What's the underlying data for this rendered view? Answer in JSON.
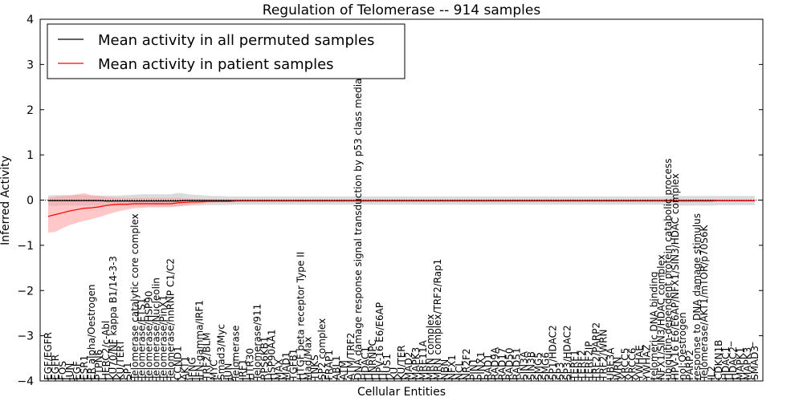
{
  "chart_data": {
    "type": "line",
    "title": "Regulation of Telomerase -- 914 samples",
    "xlabel": "Cellular Entities",
    "ylabel": "Inferred Activity",
    "ylim": [
      -4,
      4
    ],
    "yticks": [
      4,
      3,
      2,
      1,
      0,
      -1,
      -2,
      -3,
      -4
    ],
    "ytick_labels": [
      "4",
      "3",
      "2",
      "1",
      "0",
      "−1",
      "−2",
      "−3",
      "−4"
    ],
    "grid": false,
    "legend_position": "top-left",
    "colors": {
      "permuted": "#000000",
      "patient": "#ff0000",
      "permuted_band": "#b0b0b0",
      "patient_band": "#ff9999",
      "zero_line": "#000000"
    },
    "categories": [
      "EGF/EGFR",
      "EGFR",
      "FOS",
      "JUN",
      "EGF",
      "ESR1",
      "ER alpha/Oestrogen",
      "PTPN6",
      "HERC2/c-Abl",
      "KU70/NF kappa B1/14-3-3",
      "KU/TERT",
      "SP1",
      "Telomerase catalytic core complex",
      "Telomerase/ETS1",
      "Telomerase/HSP90",
      "Telomerase/Nucleolin",
      "Telomerase/PinX1",
      "Telomerase/hnRNP C1/C2",
      "CCND1",
      "AKT1",
      "IFNG",
      "IFN-gamma/IRF1",
      "TRF2/BLM",
      "MYC",
      "Smad3/Myc",
      "JUN_",
      "Telomerase",
      "IRF1",
      "HTR30",
      "Telomerase/911",
      "RPS6KB1",
      "HSP90AA1",
      "MAX",
      "MAD1",
      "TGFB1",
      "HTGF beta receptor Type II",
      "Mad/Max",
      "TNKS",
      "SP2 complex",
      "FRAP1",
      "ABL1",
      "ATM",
      "ATM/TRF2",
      "DNA damage response signal transduction by p53 class mediator",
      "HDAC1",
      "HNRNPC",
      "HPV-16 E6/E6AP",
      "HUS1",
      "KU",
      "KU/TER",
      "MAD2",
      "MAPK3",
      "MRE11A",
      "MRN complex",
      "MRN complex/TRF2/Rap1",
      "NBN",
      "NFX1",
      "NCL",
      "NR2F2",
      "PIN1",
      "PINX1",
      "RAD1",
      "RAD9A",
      "RAD17",
      "RAD50",
      "RAD51",
      "SIN3A",
      "SIN3B",
      "SMG5",
      "SMG6",
      "SP1/HDAC2",
      "SP3",
      "SP3/HDAC2",
      "TERF1",
      "TERF2",
      "TERF2IP",
      "TRF2/PARP2",
      "TRF2/WRN",
      "UBE3A",
      "WRN",
      "XRCC5",
      "XRCC6",
      "YWHAE",
      "YWHAZ",
      "telomeric DNA binding",
      "NFX1/SIN3/HDAC complex",
      "ubiquitin-dependent protein catabolic process",
      "HPV-16 E6/E6AP/NFX1/SIN3/HDAC complex",
      "nol:Oestrogen",
      "PARP2",
      "response to DNA damage stimulus",
      "Telomerase/AKT1/mTOR/p70S6K",
      "IL2",
      "CDKN1B",
      "HDAC1_",
      "HDAC2",
      "MAPK1",
      "MAPK3_",
      "SMAD3"
    ],
    "series": [
      {
        "name": "Mean activity in all permuted samples",
        "color": "#000000",
        "values": [
          -0.01,
          -0.01,
          -0.01,
          -0.01,
          -0.01,
          -0.01,
          -0.01,
          -0.01,
          -0.02,
          -0.02,
          -0.02,
          -0.02,
          -0.02,
          -0.02,
          -0.02,
          -0.02,
          -0.02,
          -0.02,
          -0.02,
          -0.01,
          -0.01,
          -0.01,
          -0.01,
          -0.01,
          -0.01,
          -0.01,
          -0.01,
          -0.01,
          -0.01,
          -0.01,
          -0.01,
          -0.01,
          -0.01,
          -0.01,
          -0.01,
          -0.01,
          -0.01,
          -0.01,
          -0.01,
          -0.01,
          -0.01,
          -0.01,
          -0.01,
          -0.01,
          -0.01,
          -0.01,
          -0.01,
          -0.01,
          -0.01,
          -0.01,
          -0.01,
          -0.01,
          -0.01,
          -0.01,
          -0.01,
          -0.01,
          -0.01,
          -0.01,
          -0.01,
          -0.01,
          -0.01,
          -0.01,
          -0.01,
          -0.01,
          -0.01,
          -0.01,
          -0.01,
          -0.01,
          -0.01,
          -0.01,
          -0.01,
          -0.01,
          -0.01,
          -0.01,
          -0.01,
          -0.01,
          -0.01,
          -0.01,
          -0.01,
          -0.01,
          -0.01,
          -0.01,
          -0.01,
          -0.01,
          -0.01,
          -0.01,
          -0.01,
          -0.01,
          -0.01,
          -0.01,
          -0.01,
          -0.01,
          -0.01,
          -0.01,
          -0.01,
          -0.01,
          -0.01,
          -0.01,
          -0.01
        ],
        "band_lower": [
          -0.13,
          -0.13,
          -0.12,
          -0.12,
          -0.12,
          -0.12,
          -0.12,
          -0.12,
          -0.13,
          -0.13,
          -0.13,
          -0.13,
          -0.14,
          -0.14,
          -0.14,
          -0.14,
          -0.14,
          -0.14,
          -0.14,
          -0.13,
          -0.12,
          -0.12,
          -0.11,
          -0.11,
          -0.11,
          -0.11,
          -0.1,
          -0.1,
          -0.1,
          -0.1,
          -0.1,
          -0.1,
          -0.1,
          -0.1,
          -0.1,
          -0.1,
          -0.1,
          -0.1,
          -0.1,
          -0.1,
          -0.1,
          -0.1,
          -0.1,
          -0.1,
          -0.1,
          -0.1,
          -0.1,
          -0.1,
          -0.1,
          -0.1,
          -0.1,
          -0.1,
          -0.1,
          -0.1,
          -0.1,
          -0.1,
          -0.1,
          -0.1,
          -0.1,
          -0.1,
          -0.1,
          -0.1,
          -0.1,
          -0.1,
          -0.1,
          -0.1,
          -0.1,
          -0.1,
          -0.1,
          -0.1,
          -0.1,
          -0.1,
          -0.1,
          -0.1,
          -0.1,
          -0.1,
          -0.1,
          -0.1,
          -0.1,
          -0.1,
          -0.1,
          -0.1,
          -0.1,
          -0.1,
          -0.1,
          -0.1,
          -0.12,
          -0.12,
          -0.12,
          -0.12,
          -0.12,
          -0.12,
          -0.12,
          -0.11,
          -0.11,
          -0.11,
          -0.11,
          -0.11,
          -0.11
        ],
        "band_upper": [
          0.1,
          0.11,
          0.11,
          0.11,
          0.11,
          0.11,
          0.1,
          0.1,
          0.1,
          0.1,
          0.1,
          0.11,
          0.12,
          0.13,
          0.13,
          0.13,
          0.13,
          0.13,
          0.16,
          0.14,
          0.12,
          0.11,
          0.1,
          0.09,
          0.09,
          0.08,
          0.08,
          0.08,
          0.08,
          0.08,
          0.08,
          0.08,
          0.08,
          0.08,
          0.08,
          0.08,
          0.08,
          0.08,
          0.08,
          0.08,
          0.08,
          0.08,
          0.08,
          0.08,
          0.08,
          0.08,
          0.08,
          0.08,
          0.08,
          0.08,
          0.08,
          0.08,
          0.08,
          0.08,
          0.08,
          0.08,
          0.08,
          0.08,
          0.08,
          0.08,
          0.08,
          0.08,
          0.08,
          0.08,
          0.08,
          0.08,
          0.08,
          0.08,
          0.08,
          0.08,
          0.08,
          0.08,
          0.08,
          0.08,
          0.08,
          0.08,
          0.08,
          0.08,
          0.08,
          0.08,
          0.08,
          0.08,
          0.08,
          0.08,
          0.08,
          0.08,
          0.09,
          0.09,
          0.09,
          0.09,
          0.09,
          0.09,
          0.09,
          0.09,
          0.09,
          0.09,
          0.09,
          0.09,
          0.09
        ]
      },
      {
        "name": "Mean activity in patient samples",
        "color": "#ff0000",
        "values": [
          -0.36,
          -0.32,
          -0.28,
          -0.24,
          -0.21,
          -0.18,
          -0.17,
          -0.15,
          -0.12,
          -0.1,
          -0.09,
          -0.09,
          -0.08,
          -0.08,
          -0.08,
          -0.08,
          -0.08,
          -0.08,
          -0.06,
          -0.05,
          -0.04,
          -0.04,
          -0.03,
          -0.03,
          -0.03,
          -0.03,
          -0.02,
          -0.02,
          -0.02,
          -0.02,
          -0.02,
          -0.02,
          -0.02,
          -0.02,
          -0.02,
          -0.02,
          -0.02,
          -0.02,
          -0.02,
          -0.02,
          -0.02,
          -0.02,
          -0.02,
          -0.02,
          -0.02,
          -0.02,
          -0.02,
          -0.02,
          -0.02,
          -0.02,
          -0.02,
          -0.02,
          -0.02,
          -0.02,
          -0.02,
          -0.02,
          -0.02,
          -0.02,
          -0.02,
          -0.02,
          -0.02,
          -0.02,
          -0.02,
          -0.02,
          -0.02,
          -0.02,
          -0.02,
          -0.02,
          -0.02,
          -0.02,
          -0.02,
          -0.02,
          -0.02,
          -0.02,
          -0.02,
          -0.02,
          -0.02,
          -0.02,
          -0.02,
          -0.02,
          -0.02,
          -0.02,
          -0.02,
          -0.02,
          -0.02,
          -0.02,
          -0.02,
          -0.02,
          -0.02,
          -0.02,
          -0.02,
          -0.02,
          -0.02,
          -0.01,
          -0.01,
          -0.01,
          -0.01,
          -0.01,
          -0.01
        ],
        "band_lower": [
          -0.72,
          -0.7,
          -0.62,
          -0.55,
          -0.5,
          -0.46,
          -0.42,
          -0.38,
          -0.33,
          -0.28,
          -0.24,
          -0.21,
          -0.18,
          -0.17,
          -0.16,
          -0.16,
          -0.16,
          -0.16,
          -0.14,
          -0.12,
          -0.1,
          -0.08,
          -0.06,
          -0.05,
          -0.04,
          -0.04,
          -0.04,
          -0.03,
          -0.03,
          -0.03,
          -0.03,
          -0.03,
          -0.03,
          -0.03,
          -0.03,
          -0.03,
          -0.03,
          -0.03,
          -0.03,
          -0.03,
          -0.03,
          -0.03,
          -0.03,
          -0.03,
          -0.03,
          -0.03,
          -0.03,
          -0.03,
          -0.03,
          -0.03,
          -0.03,
          -0.03,
          -0.03,
          -0.03,
          -0.03,
          -0.03,
          -0.03,
          -0.03,
          -0.03,
          -0.03,
          -0.03,
          -0.03,
          -0.03,
          -0.03,
          -0.03,
          -0.03,
          -0.03,
          -0.03,
          -0.03,
          -0.03,
          -0.03,
          -0.03,
          -0.03,
          -0.03,
          -0.03,
          -0.03,
          -0.03,
          -0.03,
          -0.03,
          -0.03,
          -0.03,
          -0.03,
          -0.03,
          -0.03,
          -0.03,
          -0.03,
          -0.04,
          -0.04,
          -0.04,
          -0.04,
          -0.04,
          -0.04,
          -0.04,
          -0.03,
          -0.03,
          -0.03,
          -0.03,
          -0.03,
          -0.03
        ],
        "band_upper": [
          0.05,
          0.08,
          0.09,
          0.1,
          0.13,
          0.15,
          0.11,
          0.09,
          0.07,
          0.06,
          0.05,
          0.05,
          0.05,
          0.05,
          0.05,
          0.05,
          0.05,
          0.05,
          0.05,
          0.04,
          0.03,
          0.03,
          0.02,
          0.02,
          0.01,
          0.01,
          0.0,
          0.0,
          0.0,
          0.0,
          0.0,
          0.0,
          0.0,
          0.0,
          0.0,
          0.0,
          0.0,
          0.0,
          0.0,
          0.0,
          0.0,
          0.0,
          0.0,
          0.0,
          0.0,
          0.0,
          0.0,
          0.0,
          0.0,
          0.0,
          0.0,
          0.0,
          0.0,
          0.0,
          0.0,
          0.0,
          0.0,
          0.0,
          0.0,
          0.0,
          0.0,
          0.0,
          0.0,
          0.0,
          0.0,
          0.0,
          0.0,
          0.0,
          0.0,
          0.0,
          0.0,
          0.0,
          0.0,
          0.0,
          0.0,
          0.0,
          0.0,
          0.0,
          0.0,
          0.0,
          0.0,
          0.0,
          0.0,
          0.0,
          0.0,
          0.0,
          0.01,
          0.01,
          0.01,
          0.01,
          0.01,
          0.01,
          0.01,
          0.01,
          0.01,
          0.01,
          0.01,
          0.01,
          0.01
        ]
      }
    ]
  }
}
